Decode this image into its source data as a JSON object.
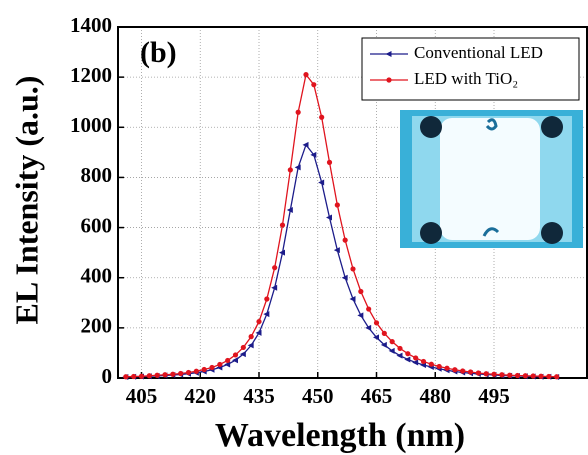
{
  "chart_data": {
    "type": "line",
    "annotation": "(b)",
    "xlabel": "Wavelength (nm)",
    "ylabel": "EL Intensity (a.u.)",
    "x": [
      401,
      403,
      405,
      407,
      409,
      411,
      413,
      415,
      417,
      419,
      421,
      423,
      425,
      427,
      429,
      431,
      433,
      435,
      437,
      439,
      441,
      443,
      445,
      447,
      449,
      451,
      453,
      455,
      457,
      459,
      461,
      463,
      465,
      467,
      469,
      471,
      473,
      475,
      477,
      479,
      481,
      483,
      485,
      487,
      489,
      491,
      493,
      495,
      497,
      499,
      501,
      503,
      505,
      507,
      509,
      511
    ],
    "series": [
      {
        "name": "Conventional LED",
        "color": "#1c1c8a",
        "marker": "triangle-left",
        "values": [
          4,
          5,
          6,
          7,
          8,
          10,
          12,
          14,
          17,
          21,
          26,
          33,
          42,
          54,
          71,
          95,
          130,
          180,
          255,
          360,
          500,
          670,
          840,
          930,
          890,
          780,
          640,
          510,
          400,
          315,
          250,
          200,
          162,
          132,
          108,
          89,
          74,
          62,
          52,
          44,
          37,
          31,
          26,
          22,
          19,
          16,
          14,
          12,
          10,
          9,
          8,
          7,
          6,
          5,
          5,
          4
        ]
      },
      {
        "name": "LED with TiO₂",
        "color": "#e0141e",
        "marker": "circle",
        "values": [
          5,
          6,
          7,
          9,
          11,
          13,
          15,
          18,
          22,
          27,
          34,
          42,
          54,
          70,
          92,
          122,
          165,
          225,
          315,
          440,
          610,
          830,
          1060,
          1210,
          1170,
          1040,
          860,
          690,
          550,
          435,
          345,
          275,
          220,
          178,
          145,
          118,
          97,
          80,
          66,
          55,
          46,
          39,
          33,
          28,
          24,
          20,
          17,
          15,
          13,
          11,
          10,
          9,
          8,
          7,
          6,
          5
        ]
      }
    ],
    "xlim": [
      399,
      519
    ],
    "xticks": [
      405,
      420,
      435,
      450,
      465,
      480,
      495
    ],
    "ylim": [
      0,
      1400
    ],
    "yticks": [
      0,
      200,
      400,
      600,
      800,
      1000,
      1200,
      1400
    ],
    "grid": true,
    "legend": "upper right"
  }
}
